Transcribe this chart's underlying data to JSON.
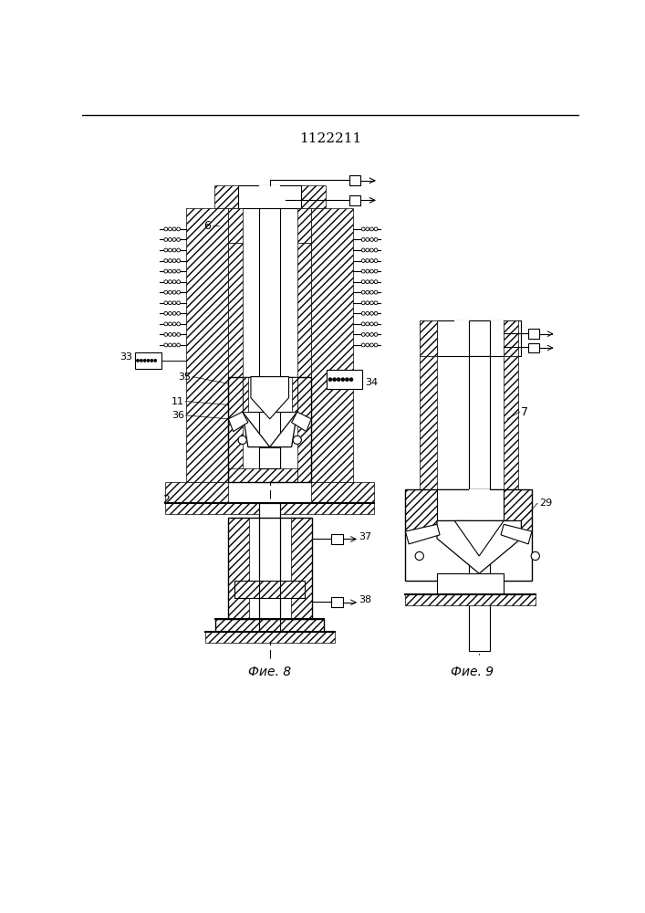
{
  "title": "1122211",
  "title_fontsize": 11,
  "fig8_label": "Фие. 8",
  "fig9_label": "Фие. 9",
  "background_color": "#ffffff"
}
